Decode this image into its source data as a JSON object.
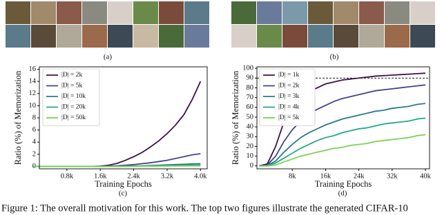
{
  "panel_labels": [
    "(a)",
    "(b)",
    "(c)",
    "(d)"
  ],
  "caption": "Figure 1: The overall motivation for this work. The top two figures illustrate the generated CIFAR-10",
  "chart_data": [
    {
      "type": "line",
      "ylabel": "Ratio (%) of Memorization",
      "xlabel": "Training Epochs",
      "x": [
        0,
        200,
        400,
        600,
        800,
        1000,
        1200,
        1400,
        1600,
        1800,
        2000,
        2200,
        2400,
        2600,
        2800,
        3000,
        3200,
        3400,
        3600,
        3800,
        4000
      ],
      "xlim": [
        140,
        4160
      ],
      "ylim": [
        -0.4,
        16.4
      ],
      "xticks": [
        {
          "value": 800,
          "label": "0.8k"
        },
        {
          "value": 1600,
          "label": "1.6k"
        },
        {
          "value": 2400,
          "label": "2.4k"
        },
        {
          "value": 3200,
          "label": "3.2k"
        },
        {
          "value": 4000,
          "label": "4.0k"
        }
      ],
      "yticks": [
        0,
        2,
        4,
        6,
        8,
        10,
        12,
        14,
        16
      ],
      "legend": "upper left",
      "series": [
        {
          "name": "|D| = 2k",
          "color": "#3b0f4f",
          "values": [
            0,
            0,
            0,
            0,
            0,
            0,
            0,
            0,
            0.05,
            0.2,
            0.5,
            1.0,
            1.6,
            2.3,
            3.2,
            4.2,
            5.4,
            6.8,
            8.5,
            11.0,
            14.0
          ]
        },
        {
          "name": "|D| = 5k",
          "color": "#41448a",
          "values": [
            0,
            0,
            0,
            0,
            0,
            0,
            0,
            0,
            0,
            0.05,
            0.1,
            0.2,
            0.3,
            0.45,
            0.6,
            0.8,
            1.0,
            1.3,
            1.6,
            1.9,
            2.1
          ]
        },
        {
          "name": "|D| = 10k",
          "color": "#2a788e",
          "values": [
            0,
            0,
            0,
            0,
            0,
            0,
            0,
            0,
            0,
            0,
            0.02,
            0.05,
            0.08,
            0.1,
            0.15,
            0.2,
            0.25,
            0.3,
            0.35,
            0.4,
            0.45
          ]
        },
        {
          "name": "|D| = 20k",
          "color": "#22a884",
          "values": [
            0,
            0,
            0,
            0,
            0,
            0,
            0,
            0,
            0,
            0,
            0,
            0.02,
            0.04,
            0.06,
            0.08,
            0.1,
            0.12,
            0.15,
            0.18,
            0.2,
            0.22
          ]
        },
        {
          "name": "|D| = 50k",
          "color": "#7ad151",
          "values": [
            0,
            0,
            0,
            0,
            0,
            0,
            0,
            0,
            0,
            0,
            0,
            0,
            0.02,
            0.03,
            0.04,
            0.05,
            0.06,
            0.07,
            0.08,
            0.09,
            0.1
          ]
        }
      ]
    },
    {
      "type": "line",
      "ylabel": "Ratio (%) of Memorization",
      "xlabel": "Training Epochs",
      "x": [
        0,
        2000,
        4000,
        6000,
        8000,
        10000,
        12000,
        14000,
        16000,
        18000,
        20000,
        22000,
        24000,
        26000,
        28000,
        30000,
        32000,
        34000,
        36000,
        38000,
        40000
      ],
      "xlim": [
        -500,
        41000
      ],
      "ylim": [
        -3,
        101.5
      ],
      "xticks": [
        {
          "value": 8000,
          "label": "8k"
        },
        {
          "value": 16000,
          "label": "16k"
        },
        {
          "value": 24000,
          "label": "24k"
        },
        {
          "value": 32000,
          "label": "32k"
        },
        {
          "value": 40000,
          "label": "40k"
        }
      ],
      "yticks": [
        0,
        10,
        20,
        30,
        40,
        50,
        60,
        70,
        80,
        90,
        100
      ],
      "reference_line": 90,
      "legend": "upper left",
      "series": [
        {
          "name": "|D| = 1k",
          "color": "#3b0f4f",
          "values": [
            0,
            2,
            20,
            45,
            60,
            70,
            76,
            80,
            84,
            86,
            88,
            89,
            90,
            91,
            92,
            92.5,
            93,
            93.5,
            94,
            94.5,
            95
          ]
        },
        {
          "name": "|D| = 2k",
          "color": "#41448a",
          "values": [
            0,
            1,
            10,
            25,
            37,
            46,
            53,
            58,
            62,
            66,
            69,
            71,
            73,
            75,
            77,
            78,
            79,
            80,
            81,
            82,
            83
          ]
        },
        {
          "name": "|D| = 3k",
          "color": "#2a788e",
          "values": [
            0,
            0.5,
            5,
            14,
            22,
            29,
            34,
            38,
            42,
            45,
            48,
            50,
            52,
            54,
            56,
            57,
            59,
            60,
            61,
            63,
            64
          ]
        },
        {
          "name": "|D| = 4k",
          "color": "#22a884",
          "values": [
            0,
            0,
            3,
            8,
            13,
            18,
            22,
            26,
            29,
            31,
            34,
            36,
            38,
            39,
            41,
            43,
            44,
            45,
            46,
            48,
            49
          ]
        },
        {
          "name": "|D| = 5k",
          "color": "#7ad151",
          "values": [
            0,
            0,
            1,
            4,
            7,
            10,
            12,
            14,
            16,
            18,
            19,
            21,
            22,
            23,
            25,
            26,
            27,
            28,
            29,
            31,
            32
          ]
        }
      ]
    }
  ]
}
